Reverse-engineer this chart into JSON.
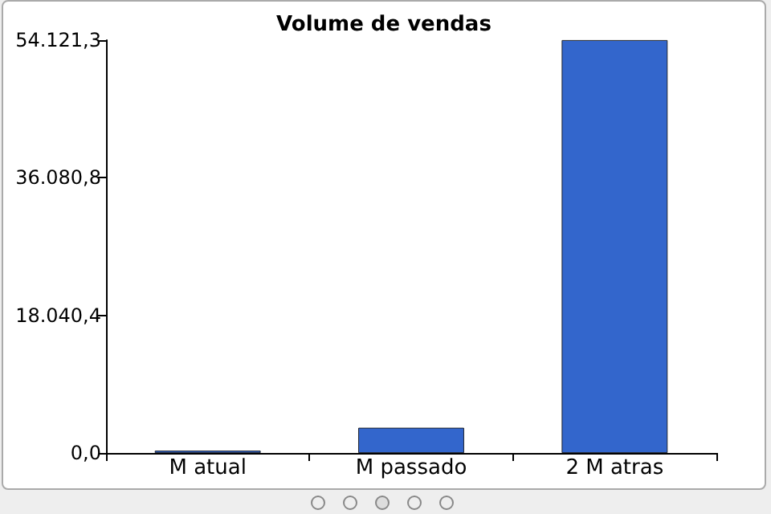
{
  "chart_data": {
    "type": "bar",
    "title": "Volume de vendas",
    "categories": [
      "M atual",
      "M passado",
      "2 M atras"
    ],
    "values": [
      300,
      3300,
      54121.3
    ],
    "color": "#3366cc",
    "ylim": [
      0,
      54121.3
    ],
    "yticks": [
      {
        "value": 0,
        "label": "0,0"
      },
      {
        "value": 18040.4,
        "label": "18.040,4"
      },
      {
        "value": 36080.8,
        "label": "36.080,8"
      },
      {
        "value": 54121.3,
        "label": "54.121,3"
      }
    ],
    "grid": false
  }
}
